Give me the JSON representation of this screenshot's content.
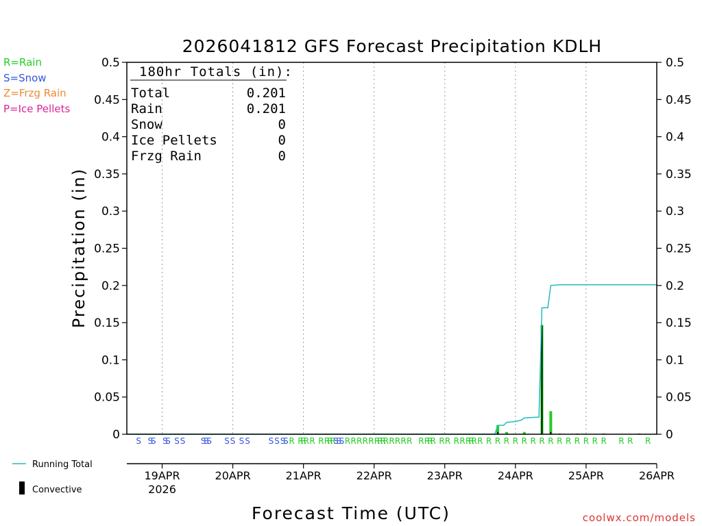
{
  "chart_data": {
    "type": "bar",
    "title": "2026041812 GFS Forecast Precipitation KDLH",
    "ylabel": "Precipitation (in)",
    "xlabel": "Forecast Time (UTC)",
    "ylim": [
      0,
      0.5
    ],
    "yticks": [
      "0",
      "0.05",
      "0.1",
      "0.15",
      "0.2",
      "0.25",
      "0.3",
      "0.35",
      "0.4",
      "0.45",
      "0.5"
    ],
    "xlim_hours": [
      0,
      180
    ],
    "xticks": [
      {
        "label": "19APR",
        "sub": "2026",
        "hour": 12
      },
      {
        "label": "20APR",
        "sub": "",
        "hour": 36
      },
      {
        "label": "21APR",
        "sub": "",
        "hour": 60
      },
      {
        "label": "22APR",
        "sub": "",
        "hour": 84
      },
      {
        "label": "23APR",
        "sub": "",
        "hour": 108
      },
      {
        "label": "24APR",
        "sub": "",
        "hour": 132
      },
      {
        "label": "25APR",
        "sub": "",
        "hour": 156
      },
      {
        "label": "26APR",
        "sub": "",
        "hour": 180
      }
    ],
    "grid": "vertical-dotted",
    "totals": {
      "heading": "180hr Totals (in):",
      "rows": [
        {
          "label": "Total",
          "value": "0.201"
        },
        {
          "label": "Rain",
          "value": "0.201"
        },
        {
          "label": "Snow",
          "value": "0"
        },
        {
          "label": "Ice Pellets",
          "value": "0"
        },
        {
          "label": "Frzg Rain",
          "value": "0"
        }
      ]
    },
    "type_legend": [
      {
        "text": "R=Rain",
        "color": "#22cc22"
      },
      {
        "text": "S=Snow",
        "color": "#3355dd"
      },
      {
        "text": "Z=Frzg Rain",
        "color": "#ee8833"
      },
      {
        "text": "P=Ice Pellets",
        "color": "#dd2299"
      }
    ],
    "series_legend": [
      {
        "text": "Running Total",
        "color": "#22bbbb",
        "kind": "line"
      },
      {
        "text": "Convective",
        "color": "#000000",
        "kind": "bar"
      }
    ],
    "precip_bars": [
      {
        "hour": 126,
        "value": 0.012
      },
      {
        "hour": 129,
        "value": 0.003
      },
      {
        "hour": 135,
        "value": 0.003
      },
      {
        "hour": 141,
        "value": 0.147
      },
      {
        "hour": 144,
        "value": 0.031
      },
      {
        "hour": 147,
        "value": 0.001
      },
      {
        "hour": 153,
        "value": 0.001
      },
      {
        "hour": 162,
        "value": 0.001
      },
      {
        "hour": 174,
        "value": 0.001
      }
    ],
    "convective_bars": [
      {
        "hour": 126,
        "value": 0.003
      },
      {
        "hour": 141,
        "value": 0.146
      },
      {
        "hour": 144,
        "value": 0.003
      }
    ],
    "running_total": [
      {
        "hour": 0,
        "value": 0
      },
      {
        "hour": 125,
        "value": 0
      },
      {
        "hour": 126,
        "value": 0.012
      },
      {
        "hour": 128,
        "value": 0.012
      },
      {
        "hour": 129,
        "value": 0.016
      },
      {
        "hour": 132,
        "value": 0.017
      },
      {
        "hour": 134,
        "value": 0.019
      },
      {
        "hour": 135,
        "value": 0.022
      },
      {
        "hour": 140,
        "value": 0.023
      },
      {
        "hour": 141,
        "value": 0.17
      },
      {
        "hour": 143,
        "value": 0.17
      },
      {
        "hour": 144,
        "value": 0.2
      },
      {
        "hour": 147,
        "value": 0.201
      },
      {
        "hour": 180,
        "value": 0.201
      }
    ],
    "type_markers": [
      {
        "hour": 4,
        "type": "S"
      },
      {
        "hour": 8,
        "type": "S"
      },
      {
        "hour": 9,
        "type": "S"
      },
      {
        "hour": 13,
        "type": "S"
      },
      {
        "hour": 14,
        "type": "S"
      },
      {
        "hour": 17,
        "type": "S"
      },
      {
        "hour": 19,
        "type": "S"
      },
      {
        "hour": 26,
        "type": "S"
      },
      {
        "hour": 27,
        "type": "S"
      },
      {
        "hour": 28,
        "type": "S"
      },
      {
        "hour": 34,
        "type": "S"
      },
      {
        "hour": 36,
        "type": "S"
      },
      {
        "hour": 39,
        "type": "S"
      },
      {
        "hour": 41,
        "type": "S"
      },
      {
        "hour": 49,
        "type": "S"
      },
      {
        "hour": 51,
        "type": "S"
      },
      {
        "hour": 53,
        "type": "S"
      },
      {
        "hour": 54,
        "type": "S"
      },
      {
        "hour": 56,
        "type": "R"
      },
      {
        "hour": 59,
        "type": "R"
      },
      {
        "hour": 60,
        "type": "R"
      },
      {
        "hour": 61,
        "type": "R"
      },
      {
        "hour": 63,
        "type": "R"
      },
      {
        "hour": 66,
        "type": "R"
      },
      {
        "hour": 68,
        "type": "R"
      },
      {
        "hour": 69,
        "type": "R"
      },
      {
        "hour": 70,
        "type": "R"
      },
      {
        "hour": 71,
        "type": "S"
      },
      {
        "hour": 72,
        "type": "S"
      },
      {
        "hour": 73,
        "type": "S"
      },
      {
        "hour": 75,
        "type": "R"
      },
      {
        "hour": 77,
        "type": "R"
      },
      {
        "hour": 79,
        "type": "R"
      },
      {
        "hour": 81,
        "type": "R"
      },
      {
        "hour": 83,
        "type": "R"
      },
      {
        "hour": 85,
        "type": "R"
      },
      {
        "hour": 86,
        "type": "R"
      },
      {
        "hour": 87,
        "type": "R"
      },
      {
        "hour": 88,
        "type": "R"
      },
      {
        "hour": 90,
        "type": "R"
      },
      {
        "hour": 92,
        "type": "R"
      },
      {
        "hour": 94,
        "type": "R"
      },
      {
        "hour": 96,
        "type": "R"
      },
      {
        "hour": 100,
        "type": "R"
      },
      {
        "hour": 102,
        "type": "R"
      },
      {
        "hour": 103,
        "type": "R"
      },
      {
        "hour": 104,
        "type": "R"
      },
      {
        "hour": 107,
        "type": "R"
      },
      {
        "hour": 109,
        "type": "R"
      },
      {
        "hour": 112,
        "type": "R"
      },
      {
        "hour": 114,
        "type": "R"
      },
      {
        "hour": 116,
        "type": "R"
      },
      {
        "hour": 117,
        "type": "R"
      },
      {
        "hour": 118,
        "type": "R"
      },
      {
        "hour": 120,
        "type": "R"
      },
      {
        "hour": 123,
        "type": "R"
      },
      {
        "hour": 126,
        "type": "R"
      },
      {
        "hour": 129,
        "type": "R"
      },
      {
        "hour": 132,
        "type": "R"
      },
      {
        "hour": 135,
        "type": "R"
      },
      {
        "hour": 138,
        "type": "R"
      },
      {
        "hour": 141,
        "type": "R"
      },
      {
        "hour": 144,
        "type": "R"
      },
      {
        "hour": 147,
        "type": "R"
      },
      {
        "hour": 150,
        "type": "R"
      },
      {
        "hour": 153,
        "type": "R"
      },
      {
        "hour": 156,
        "type": "R"
      },
      {
        "hour": 159,
        "type": "R"
      },
      {
        "hour": 162,
        "type": "R"
      },
      {
        "hour": 168,
        "type": "R"
      },
      {
        "hour": 171,
        "type": "R"
      },
      {
        "hour": 177,
        "type": "R"
      }
    ],
    "colors": {
      "rain": "#22cc22",
      "snow": "#3355dd",
      "running_total": "#22bbbb",
      "convective": "#000000",
      "credit": "#dd3333"
    }
  },
  "credit": "coolwx.com/models"
}
